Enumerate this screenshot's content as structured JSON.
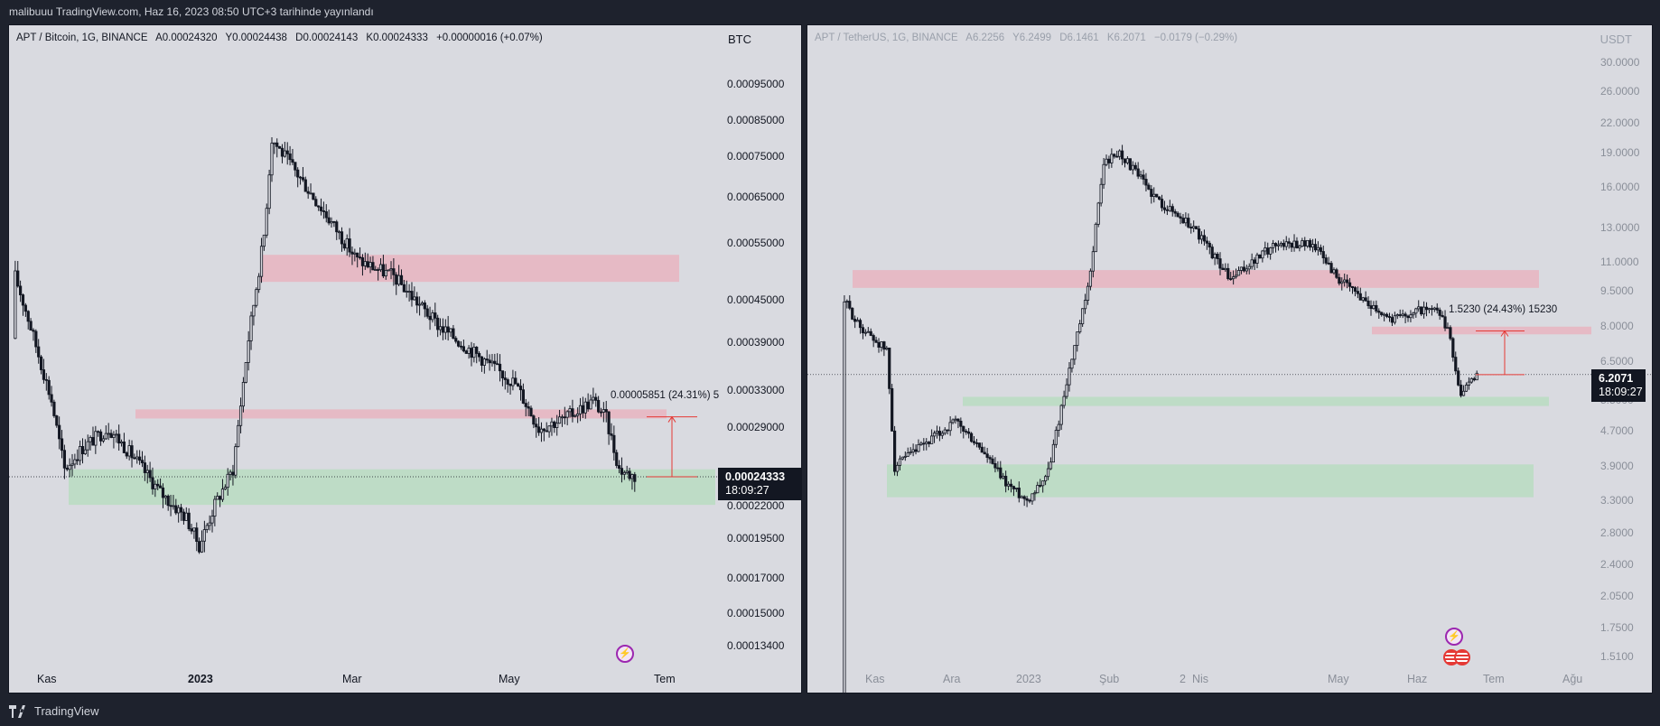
{
  "header": {
    "published": "malibuuu TradingView.com, Haz 16, 2023 08:50 UTC+3 tarihinde yayınlandı"
  },
  "footer": {
    "brand": "TradingView"
  },
  "colors": {
    "supply_zone": "#e8b4bf",
    "demand_zone": "#b9dcc1",
    "measure": "#e53935",
    "candle": "#131722",
    "background": "#d9dae0"
  },
  "left_chart": {
    "legend": {
      "symbol": "APT / Bitcoin, 1G, BINANCE",
      "open": "A0.00024320",
      "high": "Y0.00024438",
      "low": "D0.00024143",
      "close": "K0.00024333",
      "change": "+0.00000016 (+0.07%)"
    },
    "currency": "BTC",
    "price_axis": [
      "0.00095000",
      "0.00085000",
      "0.00075000",
      "0.00065000",
      "0.00055000",
      "0.00045000",
      "0.00039000",
      "0.00033000",
      "0.00029000",
      "0.00022000",
      "0.00019500",
      "0.00017000",
      "0.00015000",
      "0.00013400"
    ],
    "time_axis": [
      "Kas",
      "2023",
      "Mar",
      "May",
      "Tem"
    ],
    "last_price": "0.00024333",
    "countdown": "18:09:27",
    "measure_label": "0.00005851 (24.31%) 5"
  },
  "right_chart": {
    "legend": {
      "symbol": "APT / TetherUS, 1G, BINANCE",
      "open": "A6.2256",
      "high": "Y6.2499",
      "low": "D6.1461",
      "close": "K6.2071",
      "change": "−0.0179 (−0.29%)"
    },
    "currency": "USDT",
    "price_axis": [
      "30.0000",
      "26.0000",
      "22.0000",
      "19.0000",
      "16.0000",
      "13.0000",
      "11.0000",
      "9.5000",
      "8.0000",
      "6.5000",
      "5.5000",
      "4.7000",
      "3.9000",
      "3.3000",
      "2.8000",
      "2.4000",
      "2.0500",
      "1.7500",
      "1.5100"
    ],
    "time_axis": [
      "Kas",
      "Ara",
      "2023",
      "Şub",
      "2",
      "Nis",
      "May",
      "Haz",
      "Tem",
      "Ağu"
    ],
    "last_price": "6.2071",
    "countdown": "18:09:27",
    "measure_label": "1.5230 (24.43%) 15230"
  },
  "chart_data": [
    {
      "type": "candlestick",
      "symbol": "APT / Bitcoin",
      "interval": "1G",
      "exchange": "BINANCE",
      "scale": "log",
      "path": [
        [
          "Oct 19",
          0.0004
        ],
        [
          "Oct 20",
          0.0005
        ],
        [
          "Oct 25",
          0.00043
        ],
        [
          "Nov 3",
          0.00032
        ],
        [
          "Nov 8",
          0.00025
        ],
        [
          "Nov 15",
          0.00027
        ],
        [
          "Nov 25",
          0.00029
        ],
        [
          "Dec 5",
          0.00026
        ],
        [
          "Dec 15",
          0.00023
        ],
        [
          "Dec 25",
          0.00021
        ],
        [
          "Dec 30",
          0.00019
        ],
        [
          "Jan 5",
          0.00022
        ],
        [
          "Jan 12",
          0.00025
        ],
        [
          "Jan 18",
          0.0004
        ],
        [
          "Jan 24",
          0.00058
        ],
        [
          "Jan 27",
          0.00082
        ],
        [
          "Feb 5",
          0.00073
        ],
        [
          "Feb 15",
          0.00064
        ],
        [
          "Mar 1",
          0.00053
        ],
        [
          "Mar 15",
          0.0005
        ],
        [
          "Apr 1",
          0.00042
        ],
        [
          "Apr 15",
          0.00038
        ],
        [
          "May 1",
          0.00034
        ],
        [
          "May 10",
          0.00029
        ],
        [
          "May 20",
          0.0003
        ],
        [
          "May 31",
          0.00032
        ],
        [
          "Jun 5",
          0.0003
        ],
        [
          "Jun 10",
          0.00025
        ],
        [
          "Jun 16",
          0.00024333
        ]
      ],
      "zones": [
        {
          "kind": "supply",
          "low": 0.00049,
          "high": 0.00054
        },
        {
          "kind": "supply",
          "low": 0.0003,
          "high": 0.00031
        },
        {
          "kind": "demand",
          "low": 0.00022,
          "high": 0.00025
        }
      ],
      "measure": {
        "from": 0.00024333,
        "to": 0.00030184,
        "change": "0.00005851",
        "percent": "24.31%"
      }
    },
    {
      "type": "candlestick",
      "symbol": "APT / TetherUS",
      "interval": "1G",
      "exchange": "BINANCE",
      "scale": "log",
      "path": [
        [
          "Oct 19",
          1.0
        ],
        [
          "Oct 20",
          9.0
        ],
        [
          "Oct 25",
          8.0
        ],
        [
          "Nov 5",
          7.0
        ],
        [
          "Nov 8",
          3.9
        ],
        [
          "Nov 20",
          4.4
        ],
        [
          "Dec 1",
          4.9
        ],
        [
          "Dec 10",
          4.3
        ],
        [
          "Dec 20",
          3.6
        ],
        [
          "Dec 28",
          3.3
        ],
        [
          "Jan 5",
          3.8
        ],
        [
          "Jan 12",
          6.0
        ],
        [
          "Jan 20",
          9.5
        ],
        [
          "Jan 26",
          18.0
        ],
        [
          "Feb 1",
          19.0
        ],
        [
          "Feb 15",
          15.0
        ],
        [
          "Mar 1",
          13.0
        ],
        [
          "Mar 15",
          10.0
        ],
        [
          "Apr 1",
          12.0
        ],
        [
          "Apr 15",
          12.0
        ],
        [
          "Apr 25",
          10.0
        ],
        [
          "May 5",
          9.0
        ],
        [
          "May 15",
          8.2
        ],
        [
          "May 25",
          8.6
        ],
        [
          "Jun 1",
          8.5
        ],
        [
          "Jun 5",
          7.8
        ],
        [
          "Jun 10",
          5.6
        ],
        [
          "Jun 16",
          6.2071
        ]
      ],
      "zones": [
        {
          "kind": "supply",
          "low": 9.6,
          "high": 10.5
        },
        {
          "kind": "supply",
          "low": 7.6,
          "high": 7.9
        },
        {
          "kind": "demand",
          "low": 5.3,
          "high": 5.55
        },
        {
          "kind": "demand",
          "low": 3.35,
          "high": 3.95
        }
      ],
      "measure": {
        "from": 6.2071,
        "to": 7.7301,
        "change": "1.5230",
        "percent": "24.43%"
      }
    }
  ]
}
